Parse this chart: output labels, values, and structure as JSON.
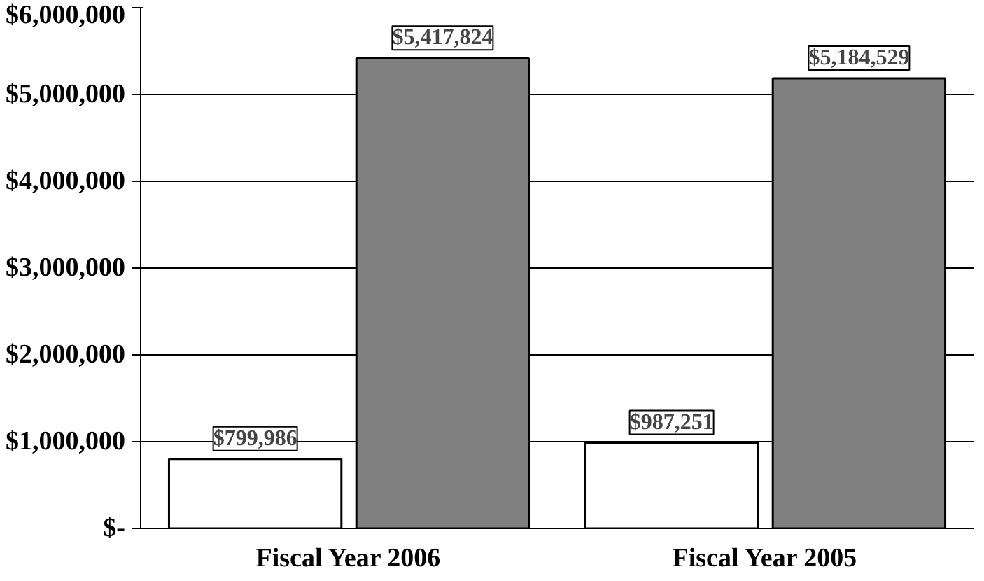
{
  "chart_data": {
    "type": "bar",
    "categories": [
      "Fiscal Year 2006",
      "Fiscal Year 2005"
    ],
    "series": [
      {
        "color": "#ffffff",
        "values": [
          799986,
          987251
        ],
        "value_labels": [
          "$799,986",
          "$987,251"
        ]
      },
      {
        "color": "#808080",
        "values": [
          5417824,
          5184529
        ],
        "value_labels": [
          "$5,417,824",
          "$5,184,529"
        ]
      }
    ],
    "ylim": [
      0,
      6000000
    ],
    "yticks": [
      {
        "value": 0,
        "label": "$-"
      },
      {
        "value": 1000000,
        "label": "$1,000,000"
      },
      {
        "value": 2000000,
        "label": "$2,000,000"
      },
      {
        "value": 3000000,
        "label": "$3,000,000"
      },
      {
        "value": 4000000,
        "label": "$4,000,000"
      },
      {
        "value": 5000000,
        "label": "$5,000,000"
      },
      {
        "value": 6000000,
        "label": "$6,000,000"
      }
    ],
    "grid": "y"
  }
}
